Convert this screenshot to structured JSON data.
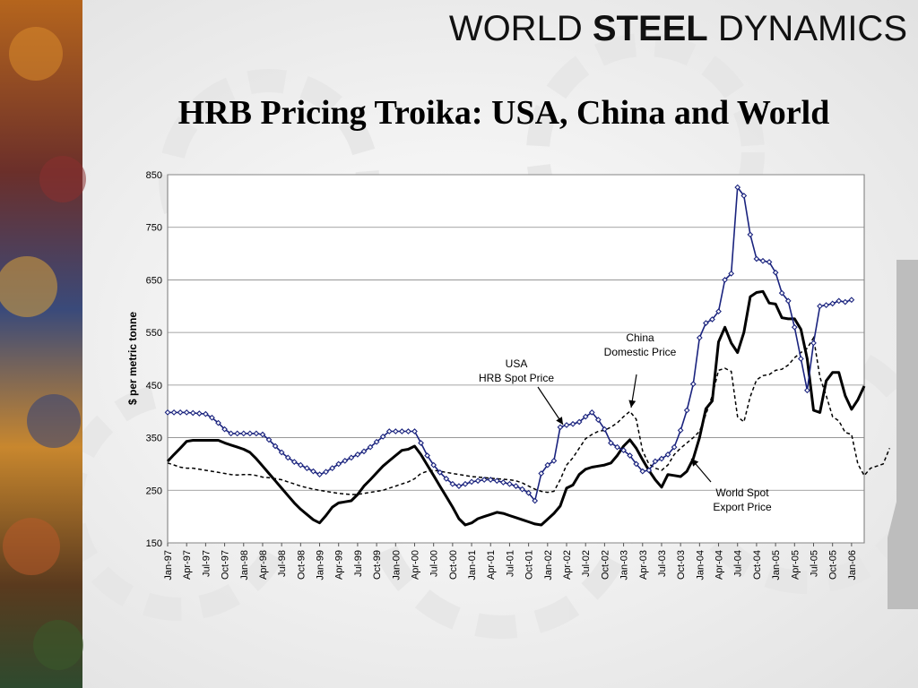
{
  "brand": {
    "part1": "WORLD",
    "part2": "STEEL",
    "part3": "DYNAMICS"
  },
  "page_title": "HRB Pricing Troika: USA, China and World",
  "colors": {
    "usa": "#1a237e",
    "world": "#000000",
    "china": "#000000"
  },
  "chart_data": {
    "type": "line",
    "title": "HRB Pricing Troika: USA, China and World",
    "ylabel": "$ per metric tonne",
    "xlabel": "",
    "ylim": [
      150,
      850
    ],
    "yticks": [
      150,
      250,
      350,
      450,
      550,
      650,
      750,
      850
    ],
    "grid": true,
    "x_start": "Jan-97",
    "x_tick_labels": [
      "Jan-97",
      "Apr-97",
      "Jul-97",
      "Oct-97",
      "Jan-98",
      "Apr-98",
      "Jul-98",
      "Oct-98",
      "Jan-99",
      "Apr-99",
      "Jul-99",
      "Oct-99",
      "Jan-00",
      "Apr-00",
      "Jul-00",
      "Oct-00",
      "Jan-01",
      "Apr-01",
      "Jul-01",
      "Oct-01",
      "Jan-02",
      "Apr-02",
      "Jul-02",
      "Oct-02",
      "Jan-03",
      "Apr-03",
      "Jul-03",
      "Oct-03",
      "Jan-04",
      "Apr-04",
      "Jul-04",
      "Oct-04",
      "Jan-05",
      "Apr-05",
      "Jul-05",
      "Oct-05",
      "Jan-06"
    ],
    "annotations": [
      {
        "lines": [
          "China",
          "Domestic Price"
        ]
      },
      {
        "lines": [
          "USA",
          "HRB Spot Price"
        ]
      },
      {
        "lines": [
          "World Spot",
          "Export Price"
        ]
      }
    ],
    "series": [
      {
        "key": "usa",
        "style": "blue-line-diamond-markers",
        "values": [
          398,
          398,
          398,
          398,
          397,
          396,
          395,
          388,
          378,
          366,
          358,
          358,
          358,
          358,
          358,
          356,
          346,
          334,
          322,
          312,
          304,
          298,
          292,
          286,
          280,
          285,
          292,
          300,
          306,
          312,
          318,
          324,
          332,
          342,
          352,
          362,
          362,
          362,
          362,
          362,
          340,
          316,
          298,
          284,
          272,
          262,
          258,
          262,
          266,
          268,
          270,
          270,
          268,
          265,
          262,
          258,
          252,
          245,
          230,
          282,
          298,
          306,
          370,
          374,
          376,
          380,
          390,
          398,
          384,
          366,
          340,
          332,
          326,
          316,
          300,
          286,
          288,
          305,
          310,
          318,
          332,
          364,
          402,
          452,
          540,
          568,
          575,
          590,
          650,
          662,
          826,
          810,
          736,
          690,
          686,
          684,
          664,
          625,
          610,
          560,
          500,
          440,
          530,
          600,
          602,
          605,
          610,
          608,
          612
        ]
      },
      {
        "key": "world",
        "style": "thick-black-line",
        "values": [
          305,
          318,
          330,
          343,
          345,
          345,
          345,
          345,
          345,
          340,
          336,
          332,
          328,
          322,
          310,
          296,
          282,
          268,
          254,
          240,
          226,
          214,
          204,
          194,
          188,
          202,
          218,
          226,
          228,
          230,
          242,
          258,
          270,
          283,
          296,
          306,
          316,
          326,
          328,
          334,
          318,
          298,
          278,
          258,
          238,
          218,
          196,
          184,
          188,
          196,
          200,
          204,
          208,
          206,
          202,
          198,
          194,
          190,
          186,
          184,
          195,
          206,
          220,
          254,
          260,
          280,
          290,
          294,
          296,
          298,
          302,
          316,
          334,
          346,
          330,
          308,
          288,
          270,
          256,
          280,
          278,
          276,
          286,
          310,
          350,
          405,
          420,
          532,
          560,
          530,
          512,
          550,
          618,
          626,
          628,
          606,
          604,
          578,
          576,
          576,
          556,
          500,
          402,
          398,
          458,
          474,
          474,
          430,
          404,
          422,
          448
        ]
      },
      {
        "key": "china",
        "style": "dashed-black-line",
        "values": [
          302,
          298,
          294,
          292,
          292,
          290,
          288,
          286,
          284,
          282,
          280,
          279,
          280,
          280,
          278,
          275,
          274,
          272,
          270,
          266,
          262,
          258,
          255,
          252,
          250,
          248,
          246,
          244,
          243,
          242,
          242,
          244,
          246,
          248,
          250,
          254,
          258,
          262,
          266,
          272,
          282,
          286,
          288,
          286,
          284,
          282,
          280,
          278,
          276,
          275,
          274,
          273,
          272,
          271,
          270,
          268,
          264,
          258,
          252,
          248,
          246,
          248,
          270,
          298,
          312,
          330,
          348,
          356,
          362,
          364,
          370,
          378,
          390,
          400,
          385,
          325,
          300,
          292,
          288,
          298,
          318,
          330,
          340,
          350,
          362,
          394,
          430,
          478,
          482,
          476,
          390,
          380,
          428,
          460,
          468,
          470,
          478,
          480,
          488,
          502,
          512,
          520,
          540,
          465,
          430,
          390,
          382,
          360,
          356,
          300,
          278,
          292,
          296,
          300,
          330
        ]
      }
    ]
  }
}
